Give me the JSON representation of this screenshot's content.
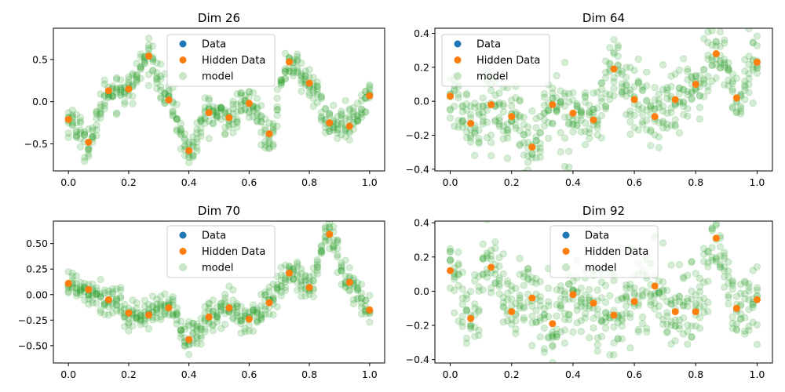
{
  "figure": {
    "background": "#ffffff"
  },
  "chart_data": [
    {
      "type": "scatter",
      "title": "Dim 26",
      "xlim": [
        -0.05,
        1.05
      ],
      "ylim": [
        -0.82,
        0.87
      ],
      "xticks": [
        0.0,
        0.2,
        0.4,
        0.6,
        0.8,
        1.0
      ],
      "xtick_labels": [
        "0.0",
        "0.2",
        "0.4",
        "0.6",
        "0.8",
        "1.0"
      ],
      "yticks": [
        -0.5,
        0.0,
        0.5
      ],
      "ytick_labels": [
        "−0.5",
        "0.0",
        "0.5"
      ],
      "legend": {
        "position": "top-center",
        "entries": [
          "Data",
          "Hidden Data",
          "model"
        ]
      },
      "series": [
        {
          "name": "Data",
          "color": "#1f77b4",
          "x": [],
          "y": []
        },
        {
          "name": "Hidden Data",
          "color": "#ff7f0e",
          "x": [
            0.0,
            0.0667,
            0.1333,
            0.2,
            0.2667,
            0.3333,
            0.4,
            0.4667,
            0.5333,
            0.6,
            0.6667,
            0.7333,
            0.8,
            0.8667,
            0.9333,
            1.0
          ],
          "y": [
            -0.21,
            -0.48,
            0.13,
            0.15,
            0.54,
            0.02,
            -0.58,
            -0.13,
            -0.19,
            -0.02,
            -0.38,
            0.47,
            0.22,
            -0.25,
            -0.29,
            0.07
          ]
        },
        {
          "name": "model",
          "color": "#2ca02c",
          "alpha": 0.2,
          "samples_per_column": 7,
          "spread": 0.1
        }
      ]
    },
    {
      "type": "scatter",
      "title": "Dim 64",
      "xlim": [
        -0.05,
        1.05
      ],
      "ylim": [
        -0.41,
        0.43
      ],
      "xticks": [
        0.0,
        0.2,
        0.4,
        0.6,
        0.8,
        1.0
      ],
      "xtick_labels": [
        "0.0",
        "0.2",
        "0.4",
        "0.6",
        "0.8",
        "1.0"
      ],
      "yticks": [
        -0.4,
        -0.2,
        0.0,
        0.2,
        0.4
      ],
      "ytick_labels": [
        "−0.4",
        "−0.2",
        "0.0",
        "0.2",
        "0.4"
      ],
      "legend": {
        "position": "upper-left",
        "entries": [
          "Data",
          "Hidden Data",
          "model"
        ]
      },
      "series": [
        {
          "name": "Data",
          "color": "#1f77b4",
          "x": [],
          "y": []
        },
        {
          "name": "Hidden Data",
          "color": "#ff7f0e",
          "x": [
            0.0,
            0.0667,
            0.1333,
            0.2,
            0.2667,
            0.3333,
            0.4,
            0.4667,
            0.5333,
            0.6,
            0.6667,
            0.7333,
            0.8,
            0.8667,
            0.9333,
            1.0
          ],
          "y": [
            0.03,
            -0.13,
            -0.02,
            -0.09,
            -0.27,
            -0.02,
            -0.07,
            -0.11,
            0.19,
            0.01,
            -0.09,
            0.01,
            0.1,
            0.28,
            0.02,
            0.23
          ]
        },
        {
          "name": "model",
          "color": "#2ca02c",
          "alpha": 0.2,
          "samples_per_column": 7,
          "spread": 0.1
        }
      ]
    },
    {
      "type": "scatter",
      "title": "Dim 70",
      "xlim": [
        -0.05,
        1.05
      ],
      "ylim": [
        -0.67,
        0.72
      ],
      "xticks": [
        0.0,
        0.2,
        0.4,
        0.6,
        0.8,
        1.0
      ],
      "xtick_labels": [
        "0.0",
        "0.2",
        "0.4",
        "0.6",
        "0.8",
        "1.0"
      ],
      "yticks": [
        -0.5,
        -0.25,
        0.0,
        0.25,
        0.5
      ],
      "ytick_labels": [
        "−0.50",
        "−0.25",
        "0.00",
        "0.25",
        "0.50"
      ],
      "legend": {
        "position": "top-center",
        "entries": [
          "Data",
          "Hidden Data",
          "model"
        ]
      },
      "series": [
        {
          "name": "Data",
          "color": "#1f77b4",
          "x": [],
          "y": []
        },
        {
          "name": "Hidden Data",
          "color": "#ff7f0e",
          "x": [
            0.0,
            0.0667,
            0.1333,
            0.2,
            0.2667,
            0.3333,
            0.4,
            0.4667,
            0.5333,
            0.6,
            0.6667,
            0.7333,
            0.8,
            0.8667,
            0.9333,
            1.0
          ],
          "y": [
            0.11,
            0.05,
            -0.05,
            -0.18,
            -0.2,
            -0.13,
            -0.44,
            -0.22,
            -0.13,
            -0.24,
            -0.08,
            0.21,
            0.07,
            0.59,
            0.12,
            -0.15
          ]
        },
        {
          "name": "model",
          "color": "#2ca02c",
          "alpha": 0.2,
          "samples_per_column": 7,
          "spread": 0.08
        }
      ]
    },
    {
      "type": "scatter",
      "title": "Dim 92",
      "xlim": [
        -0.05,
        1.05
      ],
      "ylim": [
        -0.42,
        0.41
      ],
      "xticks": [
        0.0,
        0.2,
        0.4,
        0.6,
        0.8,
        1.0
      ],
      "xtick_labels": [
        "0.0",
        "0.2",
        "0.4",
        "0.6",
        "0.8",
        "1.0"
      ],
      "yticks": [
        -0.4,
        -0.2,
        0.0,
        0.2,
        0.4
      ],
      "ytick_labels": [
        "−0.4",
        "−0.2",
        "0.0",
        "0.2",
        "0.4"
      ],
      "legend": {
        "position": "top-center",
        "entries": [
          "Data",
          "Hidden Data",
          "model"
        ]
      },
      "series": [
        {
          "name": "Data",
          "color": "#1f77b4",
          "x": [],
          "y": []
        },
        {
          "name": "Hidden Data",
          "color": "#ff7f0e",
          "x": [
            0.0,
            0.0667,
            0.1333,
            0.2,
            0.2667,
            0.3333,
            0.4,
            0.4667,
            0.5333,
            0.6,
            0.6667,
            0.7333,
            0.8,
            0.8667,
            0.9333,
            1.0
          ],
          "y": [
            0.12,
            -0.16,
            0.14,
            -0.12,
            -0.04,
            -0.19,
            -0.02,
            -0.07,
            -0.14,
            -0.06,
            0.03,
            -0.12,
            -0.12,
            0.31,
            -0.1,
            -0.05
          ]
        },
        {
          "name": "model",
          "color": "#2ca02c",
          "alpha": 0.2,
          "samples_per_column": 7,
          "spread": 0.12
        }
      ]
    }
  ]
}
